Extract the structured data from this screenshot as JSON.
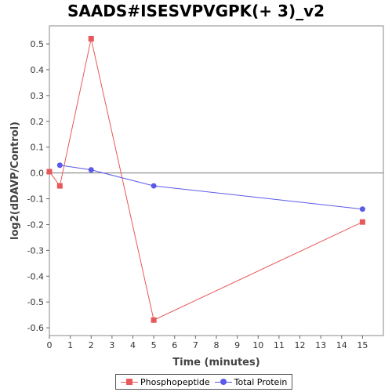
{
  "chart_data": {
    "type": "line",
    "title": "SAADS#ISESVPVGPK(+ 3)_v2",
    "xlabel": "Time (minutes)",
    "ylabel": "log2(dDAVP/Control)",
    "xlim": [
      0,
      16
    ],
    "ylim": [
      -0.63,
      0.57
    ],
    "x_ticks": [
      "0",
      "1",
      "2",
      "3",
      "4",
      "5",
      "6",
      "7",
      "8",
      "9",
      "10",
      "11",
      "12",
      "13",
      "14",
      "15"
    ],
    "y_ticks": [
      "0.5",
      "0.4",
      "0.3",
      "0.2",
      "0.1",
      "0.0",
      "-0.1",
      "-0.2",
      "-0.3",
      "-0.4",
      "-0.5",
      "-0.6"
    ],
    "grid": false,
    "zero_line": true,
    "legend_position": "bottom-center",
    "series": [
      {
        "name": "Phosphopeptide",
        "color": "#e8585a",
        "marker": "square",
        "x": [
          0,
          0.5,
          2,
          5,
          15
        ],
        "y": [
          0.005,
          -0.05,
          0.52,
          -0.57,
          -0.19
        ]
      },
      {
        "name": "Total Protein",
        "color": "#5a5ae8",
        "marker": "circle",
        "x": [
          0.5,
          2,
          5,
          15
        ],
        "y": [
          0.03,
          0.012,
          -0.05,
          -0.14
        ]
      }
    ]
  }
}
